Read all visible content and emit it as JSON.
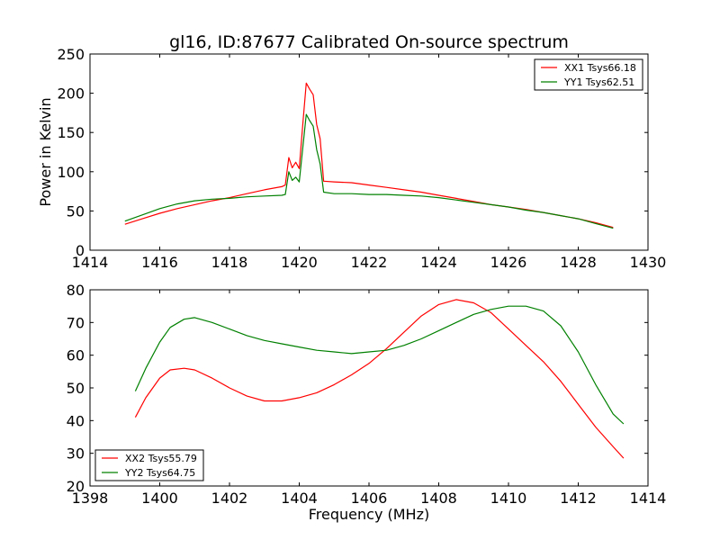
{
  "chart_data": [
    {
      "type": "line",
      "title": "gl16, ID:87677 Calibrated On-source spectrum",
      "xlabel": "",
      "ylabel": "Power in Kelvin",
      "xlim": [
        1414,
        1430
      ],
      "ylim": [
        0,
        250
      ],
      "xticks": [
        1414,
        1416,
        1418,
        1420,
        1422,
        1424,
        1426,
        1428,
        1430
      ],
      "yticks": [
        0,
        50,
        100,
        150,
        200,
        250
      ],
      "grid": false,
      "legend_position": "top-right",
      "series": [
        {
          "name": "XX1 Tsys66.18",
          "color": "#ff0000",
          "x": [
            1415.0,
            1415.5,
            1416.0,
            1416.5,
            1417.0,
            1417.5,
            1418.0,
            1418.5,
            1419.0,
            1419.5,
            1419.6,
            1419.7,
            1419.8,
            1419.9,
            1420.0,
            1420.1,
            1420.2,
            1420.3,
            1420.4,
            1420.5,
            1420.6,
            1420.7,
            1421.0,
            1421.5,
            1422.0,
            1422.5,
            1423.0,
            1423.5,
            1424.0,
            1424.5,
            1425.0,
            1425.5,
            1426.0,
            1426.5,
            1427.0,
            1427.5,
            1428.0,
            1428.5,
            1429.0
          ],
          "y": [
            33,
            40,
            47,
            53,
            58,
            63,
            67,
            72,
            77,
            81,
            83,
            118,
            105,
            112,
            104,
            160,
            213,
            205,
            198,
            160,
            142,
            88,
            87,
            86,
            83,
            80,
            77,
            74,
            70,
            66,
            62,
            58,
            55,
            52,
            48,
            44,
            40,
            35,
            29
          ]
        },
        {
          "name": "YY1 Tsys62.51",
          "color": "#008000",
          "x": [
            1415.0,
            1415.5,
            1416.0,
            1416.5,
            1417.0,
            1417.5,
            1418.0,
            1418.5,
            1419.0,
            1419.5,
            1419.6,
            1419.7,
            1419.8,
            1419.9,
            1420.0,
            1420.1,
            1420.2,
            1420.3,
            1420.4,
            1420.5,
            1420.6,
            1420.7,
            1421.0,
            1421.5,
            1422.0,
            1422.5,
            1423.0,
            1423.5,
            1424.0,
            1424.5,
            1425.0,
            1425.5,
            1426.0,
            1426.5,
            1427.0,
            1427.5,
            1428.0,
            1428.5,
            1429.0
          ],
          "y": [
            37,
            45,
            53,
            59,
            63,
            65,
            66,
            68,
            69,
            70,
            71,
            100,
            89,
            93,
            87,
            130,
            173,
            165,
            158,
            128,
            110,
            74,
            72,
            72,
            71,
            71,
            70,
            69,
            67,
            64,
            61,
            58,
            55,
            51,
            48,
            44,
            40,
            34,
            28
          ]
        }
      ]
    },
    {
      "type": "line",
      "title": "",
      "xlabel": "Frequency (MHz)",
      "ylabel": "",
      "xlim": [
        1398,
        1414
      ],
      "ylim": [
        20,
        80
      ],
      "xticks": [
        1398,
        1400,
        1402,
        1404,
        1406,
        1408,
        1410,
        1412,
        1414
      ],
      "yticks": [
        20,
        30,
        40,
        50,
        60,
        70,
        80
      ],
      "grid": false,
      "legend_position": "bottom-left",
      "series": [
        {
          "name": "XX2 Tsys55.79",
          "color": "#ff0000",
          "x": [
            1399.3,
            1399.6,
            1400.0,
            1400.3,
            1400.7,
            1401.0,
            1401.5,
            1402.0,
            1402.5,
            1403.0,
            1403.5,
            1404.0,
            1404.5,
            1405.0,
            1405.5,
            1406.0,
            1406.5,
            1407.0,
            1407.5,
            1408.0,
            1408.5,
            1409.0,
            1409.5,
            1410.0,
            1410.5,
            1411.0,
            1411.5,
            1412.0,
            1412.5,
            1413.0,
            1413.3
          ],
          "y": [
            41,
            47,
            53,
            55.5,
            56,
            55.5,
            53,
            50,
            47.5,
            46,
            46,
            47,
            48.5,
            51,
            54,
            57.5,
            62,
            67,
            72,
            75.5,
            77,
            76,
            73,
            68,
            63,
            58,
            52,
            45,
            38,
            32,
            28.5
          ]
        },
        {
          "name": "YY2 Tsys64.75",
          "color": "#008000",
          "x": [
            1399.3,
            1399.6,
            1400.0,
            1400.3,
            1400.7,
            1401.0,
            1401.5,
            1402.0,
            1402.5,
            1403.0,
            1403.5,
            1404.0,
            1404.5,
            1405.0,
            1405.5,
            1406.0,
            1406.5,
            1407.0,
            1407.5,
            1408.0,
            1408.5,
            1409.0,
            1409.5,
            1410.0,
            1410.5,
            1411.0,
            1411.5,
            1412.0,
            1412.5,
            1413.0,
            1413.3
          ],
          "y": [
            49,
            56,
            64,
            68.5,
            71,
            71.5,
            70,
            68,
            66,
            64.5,
            63.5,
            62.5,
            61.5,
            61,
            60.5,
            61,
            61.5,
            63,
            65,
            67.5,
            70,
            72.5,
            74,
            75,
            75,
            73.5,
            69,
            61,
            51,
            42,
            39
          ]
        }
      ]
    }
  ]
}
